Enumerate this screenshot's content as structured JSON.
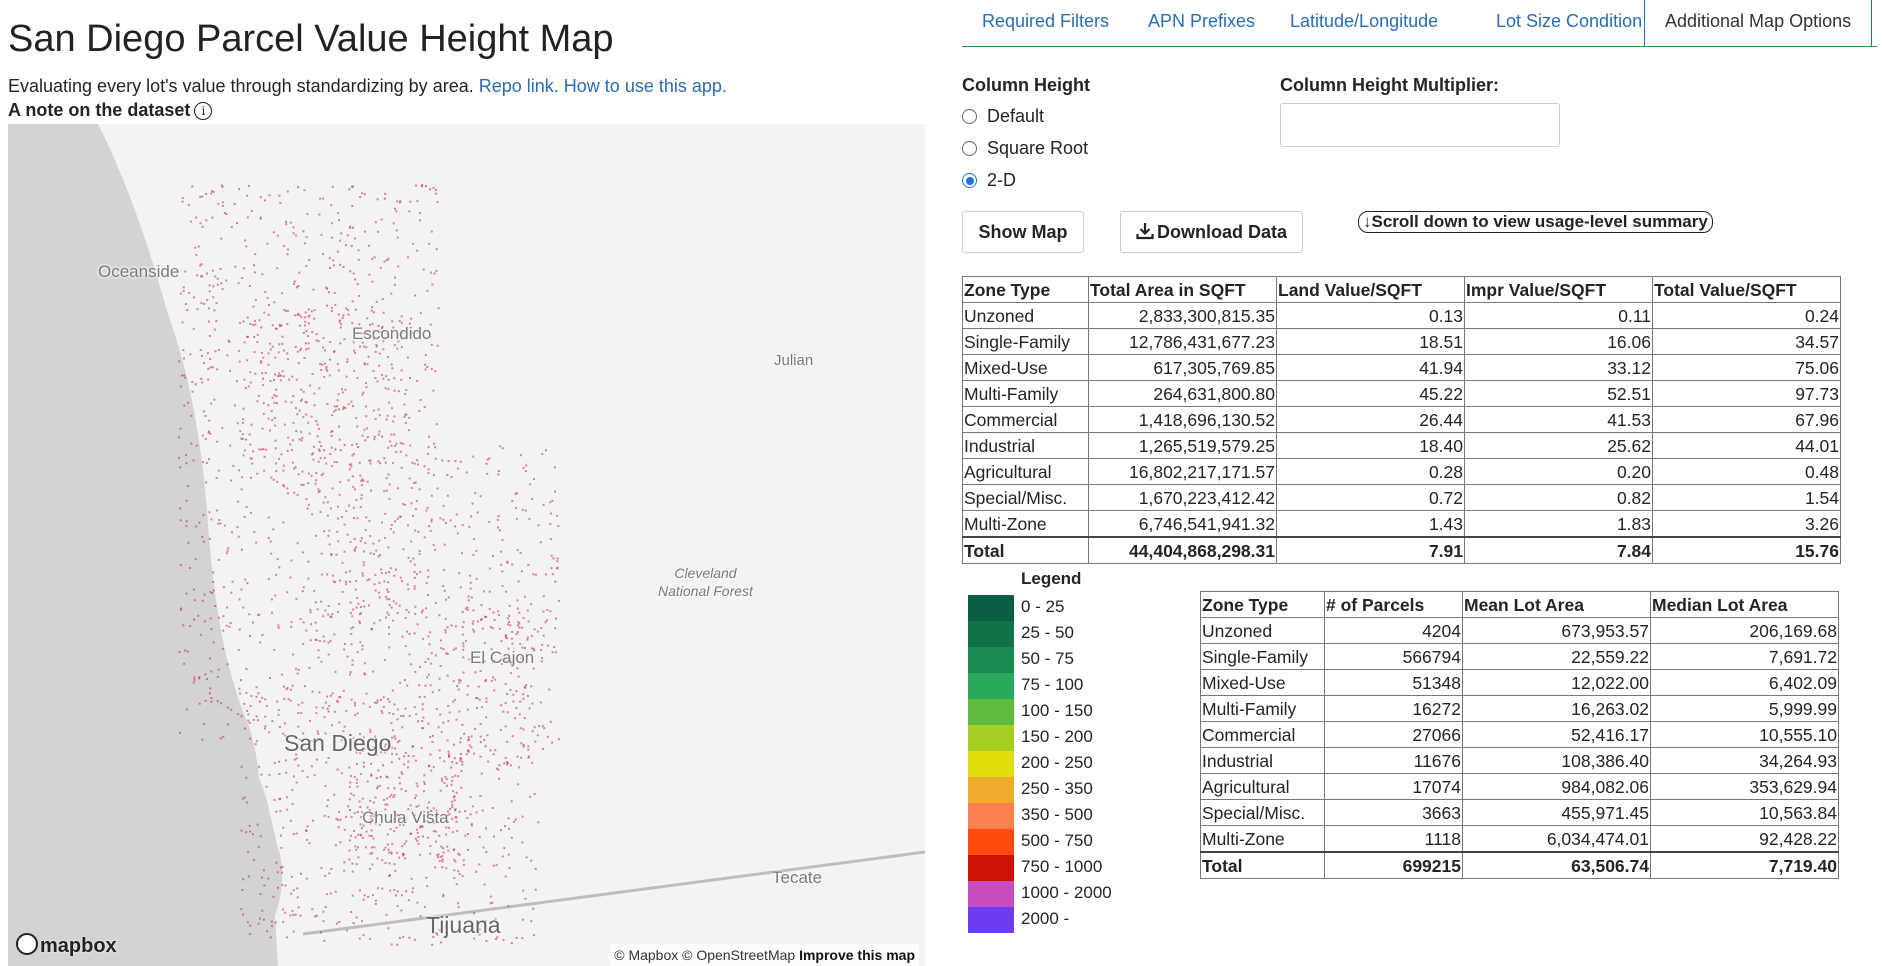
{
  "header": {
    "title": "San Diego Parcel Value Height Map",
    "subtitle": "Evaluating every lot's value through standardizing by area.",
    "repo_link": "Repo link.",
    "howto_link": "How to use this app.",
    "note_label": "A note on the dataset",
    "note_icon": "info-icon"
  },
  "map": {
    "labels": {
      "oceanside": "Oceanside",
      "escondido": "Escondido",
      "julian": "Julian",
      "cleveland_1": "Cleveland",
      "cleveland_2": "National Forest",
      "el_cajon": "El Cajon",
      "san_diego": "San Diego",
      "chula_vista": "Chula Vista",
      "tecate": "Tecate",
      "tijuana": "Tijuana"
    },
    "logo_text": "mapbox",
    "attribution_mapbox": "© Mapbox",
    "attribution_osm": "© OpenStreetMap",
    "improve": "Improve this map",
    "colors": {
      "ocean": "#d3d3d3",
      "land": "#f3f3f3",
      "parcel": "#c8233c"
    }
  },
  "tabs": [
    {
      "label": "Required Filters",
      "active": false
    },
    {
      "label": "APN Prefixes",
      "active": false
    },
    {
      "label": "Latitude/Longitude",
      "active": false
    },
    {
      "label": "Lot Size Condition",
      "active": false
    },
    {
      "label": "Additional Map Options",
      "active": true
    }
  ],
  "controls": {
    "column_height_label": "Column Height",
    "options": [
      {
        "label": "Default",
        "checked": false
      },
      {
        "label": "Square Root",
        "checked": false
      },
      {
        "label": "2-D",
        "checked": true
      }
    ],
    "multiplier_label": "Column Height Multiplier:",
    "multiplier_value": "",
    "show_map": "Show Map",
    "download": "Download Data",
    "download_icon": "download-icon",
    "scroll_summary": "↓Scroll down to view usage-level summary"
  },
  "value_table": {
    "headers": [
      "Zone Type",
      "Total Area in SQFT",
      "Land Value/SQFT",
      "Impr Value/SQFT",
      "Total Value/SQFT"
    ],
    "rows": [
      [
        "Unzoned",
        "2,833,300,815.35",
        "0.13",
        "0.11",
        "0.24"
      ],
      [
        "Single-Family",
        "12,786,431,677.23",
        "18.51",
        "16.06",
        "34.57"
      ],
      [
        "Mixed-Use",
        "617,305,769.85",
        "41.94",
        "33.12",
        "75.06"
      ],
      [
        "Multi-Family",
        "264,631,800.80",
        "45.22",
        "52.51",
        "97.73"
      ],
      [
        "Commercial",
        "1,418,696,130.52",
        "26.44",
        "41.53",
        "67.96"
      ],
      [
        "Industrial",
        "1,265,519,579.25",
        "18.40",
        "25.62",
        "44.01"
      ],
      [
        "Agricultural",
        "16,802,217,171.57",
        "0.28",
        "0.20",
        "0.48"
      ],
      [
        "Special/Misc.",
        "1,670,223,412.42",
        "0.72",
        "0.82",
        "1.54"
      ],
      [
        "Multi-Zone",
        "6,746,541,941.32",
        "1.43",
        "1.83",
        "3.26"
      ]
    ],
    "total": [
      "Total",
      "44,404,868,298.31",
      "7.91",
      "7.84",
      "15.76"
    ]
  },
  "parcel_table": {
    "headers": [
      "Zone Type",
      "# of Parcels",
      "Mean Lot Area",
      "Median Lot Area"
    ],
    "rows": [
      [
        "Unzoned",
        "4204",
        "673,953.57",
        "206,169.68"
      ],
      [
        "Single-Family",
        "566794",
        "22,559.22",
        "7,691.72"
      ],
      [
        "Mixed-Use",
        "51348",
        "12,022.00",
        "6,402.09"
      ],
      [
        "Multi-Family",
        "16272",
        "16,263.02",
        "5,999.99"
      ],
      [
        "Commercial",
        "27066",
        "52,416.17",
        "10,555.10"
      ],
      [
        "Industrial",
        "11676",
        "108,386.40",
        "34,264.93"
      ],
      [
        "Agricultural",
        "17074",
        "984,082.06",
        "353,629.94"
      ],
      [
        "Special/Misc.",
        "3663",
        "455,971.45",
        "10,563.84"
      ],
      [
        "Multi-Zone",
        "1118",
        "6,034,474.01",
        "92,428.22"
      ]
    ],
    "total": [
      "Total",
      "699215",
      "63,506.74",
      "7,719.40"
    ]
  },
  "legend": {
    "title": "Legend",
    "items": [
      {
        "label": "0 - 25",
        "color": "#0b5e46"
      },
      {
        "label": "25 - 50",
        "color": "#117149"
      },
      {
        "label": "50 - 75",
        "color": "#1a8a52"
      },
      {
        "label": "75 - 100",
        "color": "#29a95c"
      },
      {
        "label": "100 - 150",
        "color": "#5cbb3c"
      },
      {
        "label": "150 - 200",
        "color": "#a6cd22"
      },
      {
        "label": "200 - 250",
        "color": "#dede0a"
      },
      {
        "label": "250 - 350",
        "color": "#eeab2c"
      },
      {
        "label": "350 - 500",
        "color": "#fb7f4f"
      },
      {
        "label": "500 - 750",
        "color": "#fe4b10"
      },
      {
        "label": "750 - 1000",
        "color": "#cc1204"
      },
      {
        "label": "1000 - 2000",
        "color": "#c84bc0"
      },
      {
        "label": "2000 -",
        "color": "#6a3ef0"
      }
    ]
  }
}
